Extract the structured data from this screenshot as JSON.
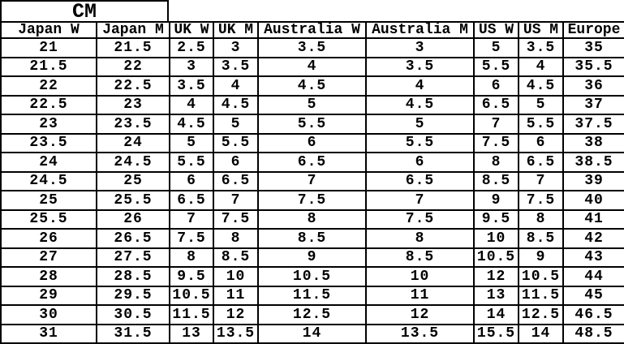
{
  "title": "CM",
  "colors": {
    "border": "#000000",
    "text": "#000000",
    "background": "#ffffff"
  },
  "chart_data": {
    "type": "table",
    "title": "CM",
    "columns": [
      "Japan W",
      "Japan M",
      "UK W",
      "UK M",
      "Australia W",
      "Australia M",
      "US W",
      "US M",
      "Europe"
    ],
    "rows": [
      [
        "21",
        "21.5",
        "2.5",
        "3",
        "3.5",
        "3",
        "5",
        "3.5",
        "35"
      ],
      [
        "21.5",
        "22",
        "3",
        "3.5",
        "4",
        "3.5",
        "5.5",
        "4",
        "35.5"
      ],
      [
        "22",
        "22.5",
        "3.5",
        "4",
        "4.5",
        "4",
        "6",
        "4.5",
        "36"
      ],
      [
        "22.5",
        "23",
        "4",
        "4.5",
        "5",
        "4.5",
        "6.5",
        "5",
        "37"
      ],
      [
        "23",
        "23.5",
        "4.5",
        "5",
        "5.5",
        "5",
        "7",
        "5.5",
        "37.5"
      ],
      [
        "23.5",
        "24",
        "5",
        "5.5",
        "6",
        "5.5",
        "7.5",
        "6",
        "38"
      ],
      [
        "24",
        "24.5",
        "5.5",
        "6",
        "6.5",
        "6",
        "8",
        "6.5",
        "38.5"
      ],
      [
        "24.5",
        "25",
        "6",
        "6.5",
        "7",
        "6.5",
        "8.5",
        "7",
        "39"
      ],
      [
        "25",
        "25.5",
        "6.5",
        "7",
        "7.5",
        "7",
        "9",
        "7.5",
        "40"
      ],
      [
        "25.5",
        "26",
        "7",
        "7.5",
        "8",
        "7.5",
        "9.5",
        "8",
        "41"
      ],
      [
        "26",
        "26.5",
        "7.5",
        "8",
        "8.5",
        "8",
        "10",
        "8.5",
        "42"
      ],
      [
        "27",
        "27.5",
        "8",
        "8.5",
        "9",
        "8.5",
        "10.5",
        "9",
        "43"
      ],
      [
        "28",
        "28.5",
        "9.5",
        "10",
        "10.5",
        "10",
        "12",
        "10.5",
        "44"
      ],
      [
        "29",
        "29.5",
        "10.5",
        "11",
        "11.5",
        "11",
        "13",
        "11.5",
        "45"
      ],
      [
        "30",
        "30.5",
        "11.5",
        "12",
        "12.5",
        "12",
        "14",
        "12.5",
        "46.5"
      ],
      [
        "31",
        "31.5",
        "13",
        "13.5",
        "14",
        "13.5",
        "15.5",
        "14",
        "48.5"
      ]
    ]
  }
}
